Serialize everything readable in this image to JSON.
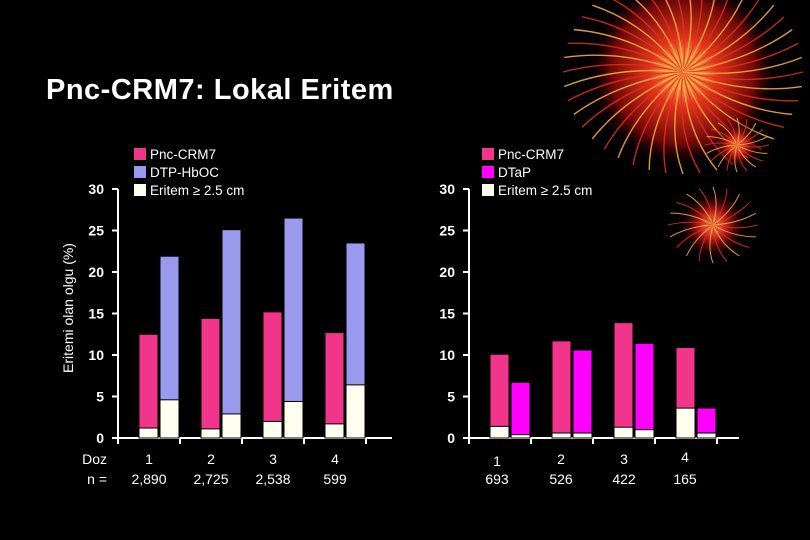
{
  "title": "Pnc-CRM7:  Lokal Eritem",
  "colors": {
    "pnc": "#f0358a",
    "dtp_hboc": "#9999ee",
    "dtap": "#ff00ff",
    "eritem": "#fffff0",
    "axis": "#ffffff",
    "background": "#000000"
  },
  "row_labels": {
    "doz": "Doz",
    "n": "n ="
  },
  "chart_data": [
    {
      "type": "bar",
      "ylabel": "Eritemi olan olgu (%)",
      "ylim": [
        0,
        30
      ],
      "yticks": [
        "0",
        "5",
        "10",
        "15",
        "20",
        "25",
        "30"
      ],
      "categories": [
        "1",
        "2",
        "3",
        "4"
      ],
      "n_values": [
        "2,890",
        "2,725",
        "2,538",
        "599"
      ],
      "legend": [
        "Pnc-CRM7",
        "DTP-HbOC",
        "Eritem ≥ 2.5 cm"
      ],
      "series": [
        {
          "name": "Pnc-CRM7",
          "values": [
            12.5,
            14.4,
            15.2,
            12.7
          ],
          "eritem_2_5cm": [
            1.2,
            1.1,
            2.0,
            1.7
          ]
        },
        {
          "name": "DTP-HbOC",
          "values": [
            21.9,
            25.1,
            26.5,
            23.5
          ],
          "eritem_2_5cm": [
            4.6,
            2.9,
            4.4,
            6.4
          ]
        }
      ]
    },
    {
      "type": "bar",
      "ylim": [
        0,
        30
      ],
      "yticks": [
        "0",
        "5",
        "10",
        "15",
        "20",
        "25",
        "30"
      ],
      "categories": [
        "1",
        "2",
        "3",
        "4"
      ],
      "n_values": [
        "693",
        "526",
        "422",
        "165"
      ],
      "legend": [
        "Pnc-CRM7",
        "DTaP",
        "Eritem ≥ 2.5 cm"
      ],
      "series": [
        {
          "name": "Pnc-CRM7",
          "values": [
            10.1,
            11.7,
            13.9,
            10.9
          ],
          "eritem_2_5cm": [
            1.4,
            0.6,
            1.3,
            3.6
          ]
        },
        {
          "name": "DTaP",
          "values": [
            6.7,
            10.6,
            11.4,
            3.6
          ],
          "eritem_2_5cm": [
            0.4,
            0.6,
            1.0,
            0.6
          ]
        }
      ]
    }
  ]
}
